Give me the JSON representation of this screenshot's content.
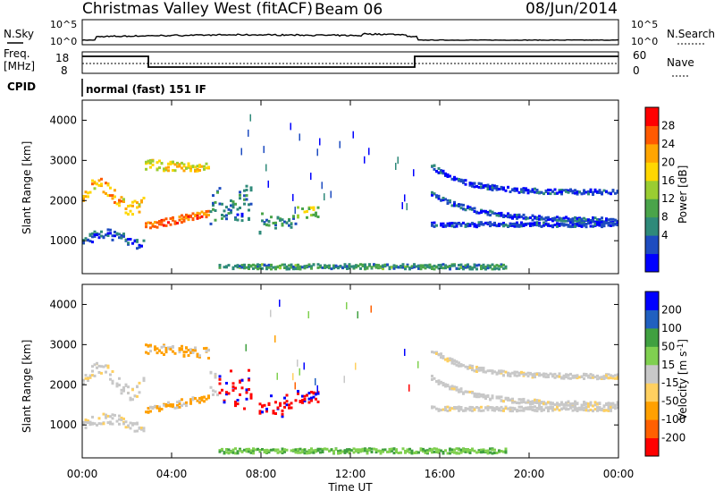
{
  "header": {
    "station": "Christmas Valley West (fitACF)",
    "beam": "Beam 06",
    "date": "08/Jun/2014"
  },
  "strip": {
    "nsky_label": "N.Sky",
    "nsky_ticks": [
      "10^5",
      "10^0"
    ],
    "nsearch_label": "N.Search",
    "nsearch_ticks": [
      "10^5",
      "10^0"
    ],
    "freq_label": "Freq.",
    "freq_unit": "[MHz]",
    "freq_ticks": [
      "18",
      "8"
    ],
    "nave_label": "Nave",
    "nave_ticks": [
      "60",
      "0"
    ],
    "cpid_label": "CPID",
    "cpid_value": "normal (fast) 151 IF"
  },
  "chart_data": [
    {
      "type": "heatmap",
      "panel": "power",
      "ylabel": "Slant Range [km]",
      "yticks": [
        "4000",
        "3000",
        "2000",
        "1000"
      ],
      "ylim": [
        180,
        4500
      ],
      "xlim": [
        0,
        24
      ],
      "colorbar_label": "Power [dB]",
      "colorbar_ticks": [
        "28",
        "24",
        "20",
        "16",
        "12",
        "8",
        "4"
      ],
      "colors": [
        "#0000ff",
        "#1e4cc0",
        "#2f8a7a",
        "#4aa44a",
        "#9acd32",
        "#ffd700",
        "#ffa500",
        "#ff5a00",
        "#ff0000"
      ],
      "echo_bands": [
        {
          "t0": 0.0,
          "t1": 1.2,
          "r0": 1700,
          "r1": 2500,
          "level": 0.6
        },
        {
          "t0": 1.2,
          "t1": 2.8,
          "r0": 1800,
          "r1": 2700,
          "level": 0.65
        },
        {
          "t0": 0.0,
          "t1": 2.8,
          "r0": 850,
          "r1": 1500,
          "level": 0.2
        },
        {
          "t0": 2.8,
          "t1": 5.7,
          "r0": 1200,
          "r1": 2000,
          "level": 0.7
        },
        {
          "t0": 3.0,
          "t1": 5.3,
          "r0": 2600,
          "r1": 3300,
          "level": 0.55
        },
        {
          "t0": 5.5,
          "t1": 7.5,
          "r0": 900,
          "r1": 2400,
          "level": 0.15
        },
        {
          "t0": 9.0,
          "t1": 10.5,
          "r0": 1200,
          "r1": 2200,
          "level": 0.5
        },
        {
          "t0": 15.5,
          "t1": 24.0,
          "r0": 1200,
          "r1": 2300,
          "level": 0.1
        }
      ]
    },
    {
      "type": "heatmap",
      "panel": "velocity",
      "ylabel": "Slant Range [km]",
      "yticks": [
        "4000",
        "3000",
        "2000",
        "1000"
      ],
      "ylim": [
        180,
        4500
      ],
      "xlim": [
        0,
        24
      ],
      "xticks": [
        "00:00",
        "04:00",
        "08:00",
        "12:00",
        "16:00",
        "20:00",
        "00:00"
      ],
      "xlabel": "Time UT",
      "colorbar_label": "Velocity [m s",
      "colorbar_superscript": "-1",
      "colorbar_label_end": "]",
      "colorbar_ticks": [
        "200",
        "100",
        "50",
        "15",
        "-15",
        "-50",
        "-100",
        "-200"
      ],
      "colors": [
        "#ff0000",
        "#ff6000",
        "#ffa000",
        "#ffd060",
        "#c8c8c8",
        "#80d050",
        "#40a040",
        "#2060c0",
        "#0000ff"
      ]
    }
  ]
}
